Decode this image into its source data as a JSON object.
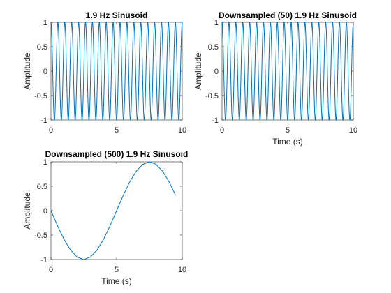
{
  "line_color": "#0072bd",
  "chart_data": [
    {
      "type": "line",
      "title": "1.9 Hz Sinusoid",
      "xlabel": "",
      "ylabel": "Amplitude",
      "xlim": [
        0,
        10
      ],
      "ylim": [
        -1,
        1
      ],
      "xticks": [
        "0",
        "5",
        "10"
      ],
      "yticks": [
        "-1",
        "-0.5",
        "0",
        "0.5",
        "1"
      ],
      "grid": false,
      "signal": {
        "frequency_hz": 1.9,
        "function": "cos",
        "t_start": 0,
        "t_end": 10,
        "sample_step": 0.002
      }
    },
    {
      "type": "line",
      "title": "Downsampled (50) 1.9 Hz Sinusoid",
      "xlabel": "Time (s)",
      "ylabel": "Amplitude",
      "xlim": [
        0,
        10
      ],
      "ylim": [
        -1,
        1
      ],
      "xticks": [
        "0",
        "5",
        "10"
      ],
      "yticks": [
        "-1",
        "-0.5",
        "0",
        "0.5",
        "1"
      ],
      "grid": false,
      "signal": {
        "frequency_hz": 1.9,
        "function": "cos",
        "t_start": 0,
        "t_end": 10,
        "sample_step": 0.005
      }
    },
    {
      "type": "line",
      "title": "Downsampled (500) 1.9 Hz Sinusoid",
      "xlabel": "Time (s)",
      "ylabel": "Amplitude",
      "xlim": [
        0,
        10
      ],
      "ylim": [
        -1,
        1
      ],
      "xticks": [
        "0",
        "5",
        "10"
      ],
      "yticks": [
        "-1",
        "-0.5",
        "0",
        "0.5",
        "1"
      ],
      "grid": false,
      "x": [
        0,
        0.5,
        1.0,
        1.5,
        2.0,
        2.5,
        3.0,
        3.5,
        4.0,
        4.5,
        5.0,
        5.5,
        6.0,
        6.5,
        7.0,
        7.5,
        8.0,
        8.5,
        9.0,
        9.5
      ],
      "y": [
        0,
        -0.31,
        -0.59,
        -0.81,
        -0.95,
        -1.0,
        -0.95,
        -0.81,
        -0.59,
        -0.31,
        0,
        0.31,
        0.59,
        0.81,
        0.95,
        1.0,
        0.95,
        0.81,
        0.59,
        0.31
      ]
    }
  ]
}
